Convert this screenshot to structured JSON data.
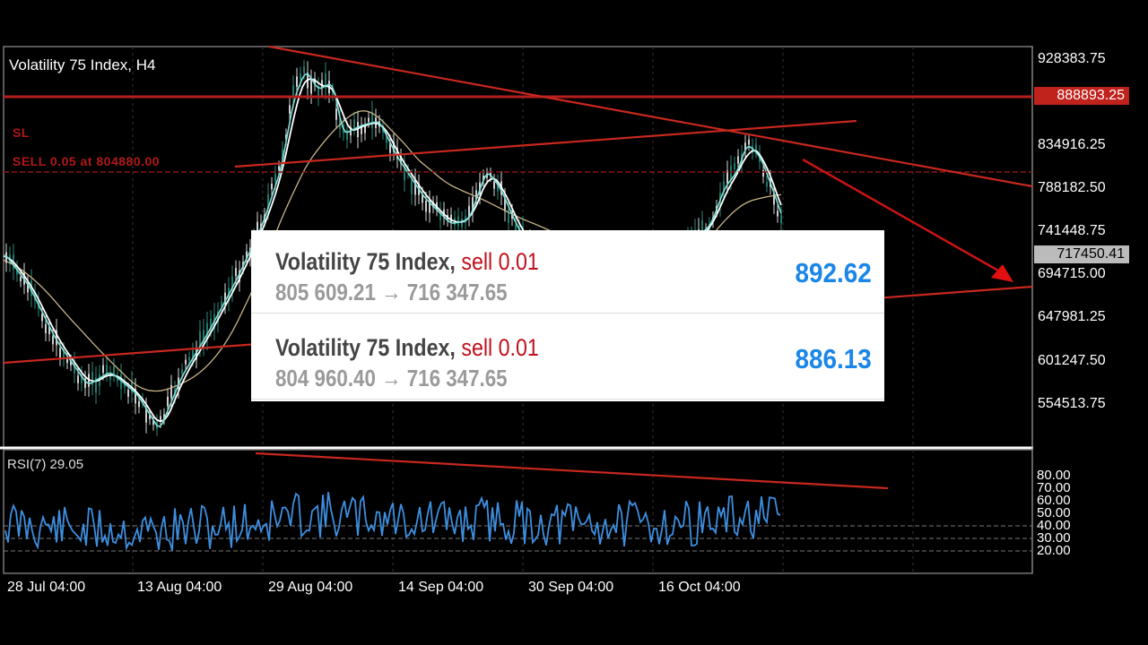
{
  "chart": {
    "title": "Volatility 75 Index, H4",
    "sl_label": "SL",
    "sell_label": "SELL 0.05 at 804880.00",
    "price_ticks": [
      "928383.75",
      "834916.25",
      "788182.50",
      "741448.75",
      "694715.00",
      "647981.25",
      "601247.50",
      "554513.75"
    ],
    "top_badge": "888893.25",
    "current_badge": "717450.41",
    "rsi_title": "RSI(7) 29.05",
    "rsi_ticks": [
      "80.00",
      "70.00",
      "60.00",
      "50.00",
      "40.00",
      "30.00",
      "20.00"
    ],
    "date_ticks": [
      "28 Jul 04:00",
      "13 Aug 04:00",
      "29 Aug 04:00",
      "14 Sep 04:00",
      "30 Sep 04:00",
      "16 Oct 04:00"
    ],
    "colors": {
      "background": "#000000",
      "grid": "#3c3c3c",
      "trendline": "#c8281e",
      "sl_line": "#9a1414",
      "sell_line": "#7a1010",
      "rsi": "#3d8fe0",
      "ma_white": "#ffffff",
      "ma_cyan": "#7fe0d8",
      "ma_tan": "#c9b48a"
    }
  },
  "trades": [
    {
      "symbol": "Volatility 75 Index,",
      "side": "sell 0.01",
      "prices": "805 609.21 → 716 347.65",
      "profit": "892.62"
    },
    {
      "symbol": "Volatility 75 Index,",
      "side": "sell 0.01",
      "prices": "804 960.40 → 716 347.65",
      "profit": "886.13"
    }
  ]
}
